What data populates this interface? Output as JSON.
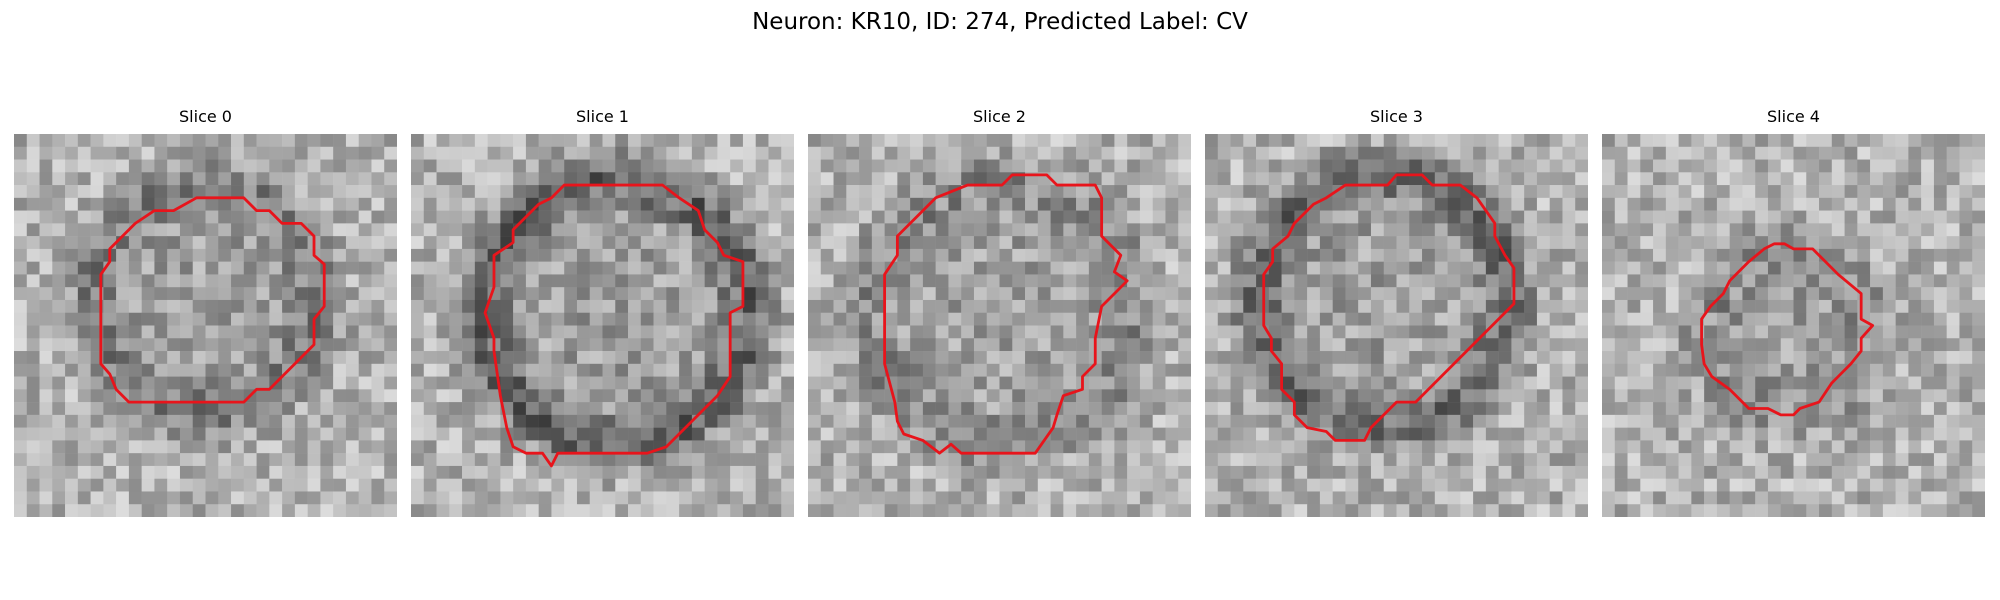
{
  "figure": {
    "title": "Neuron: KR10, ID: 274, Predicted Label: CV",
    "contour_color": "#e8141b",
    "image_colormap": "gray"
  },
  "panels": [
    {
      "title": "Slice 0",
      "ring_dark": 0.55,
      "contour_shape": "octagon"
    },
    {
      "title": "Slice 1",
      "ring_dark": 0.85,
      "contour_shape": "large rounded polygon"
    },
    {
      "title": "Slice 2",
      "ring_dark": 0.45,
      "contour_shape": "octagon"
    },
    {
      "title": "Slice 3",
      "ring_dark": 0.75,
      "contour_shape": "polygon with diagonal cut"
    },
    {
      "title": "Slice 4",
      "ring_dark": 0.35,
      "contour_shape": "small octagon"
    }
  ]
}
